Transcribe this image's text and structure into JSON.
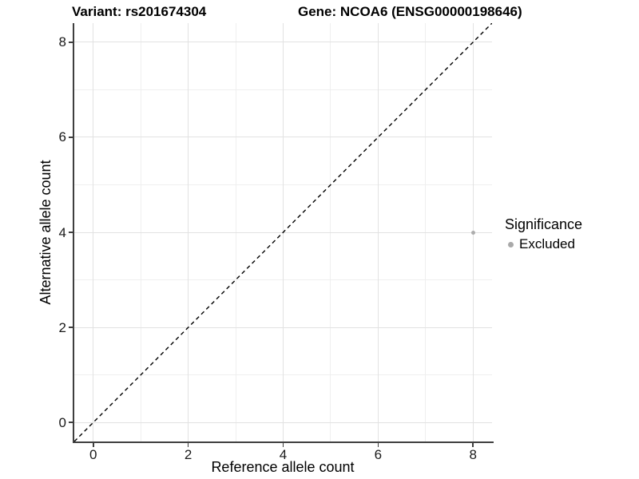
{
  "header": {
    "title_left": "Variant: rs201674304",
    "title_right": "Gene: NCOA6 (ENSG00000198646)"
  },
  "chart_data": {
    "type": "scatter",
    "xlabel": "Reference allele count",
    "ylabel": "Alternative allele count",
    "xlim": [
      -0.4,
      8.4
    ],
    "ylim": [
      -0.4,
      8.4
    ],
    "x_ticks": [
      0,
      2,
      4,
      6,
      8
    ],
    "y_ticks": [
      0,
      2,
      4,
      6,
      8
    ],
    "x_minor_ticks": [
      1,
      3,
      5,
      7
    ],
    "y_minor_ticks": [
      1,
      3,
      5,
      7
    ],
    "grid": true,
    "points": [
      {
        "x": 8,
        "y": 4,
        "series": "Excluded",
        "color": "#adadad",
        "radius": 2.5
      }
    ],
    "reference_line": {
      "slope": 1,
      "intercept": 0,
      "style": "dashed",
      "color": "#000000"
    },
    "legend": {
      "title": "Significance",
      "position": "right",
      "items": [
        {
          "label": "Excluded",
          "color": "#a9a9a9"
        }
      ]
    },
    "colors": {
      "axis_line": "#3f3f3f",
      "grid_major": "#e2e2e2",
      "grid_minor": "#efefef",
      "point": "#adadad"
    }
  }
}
